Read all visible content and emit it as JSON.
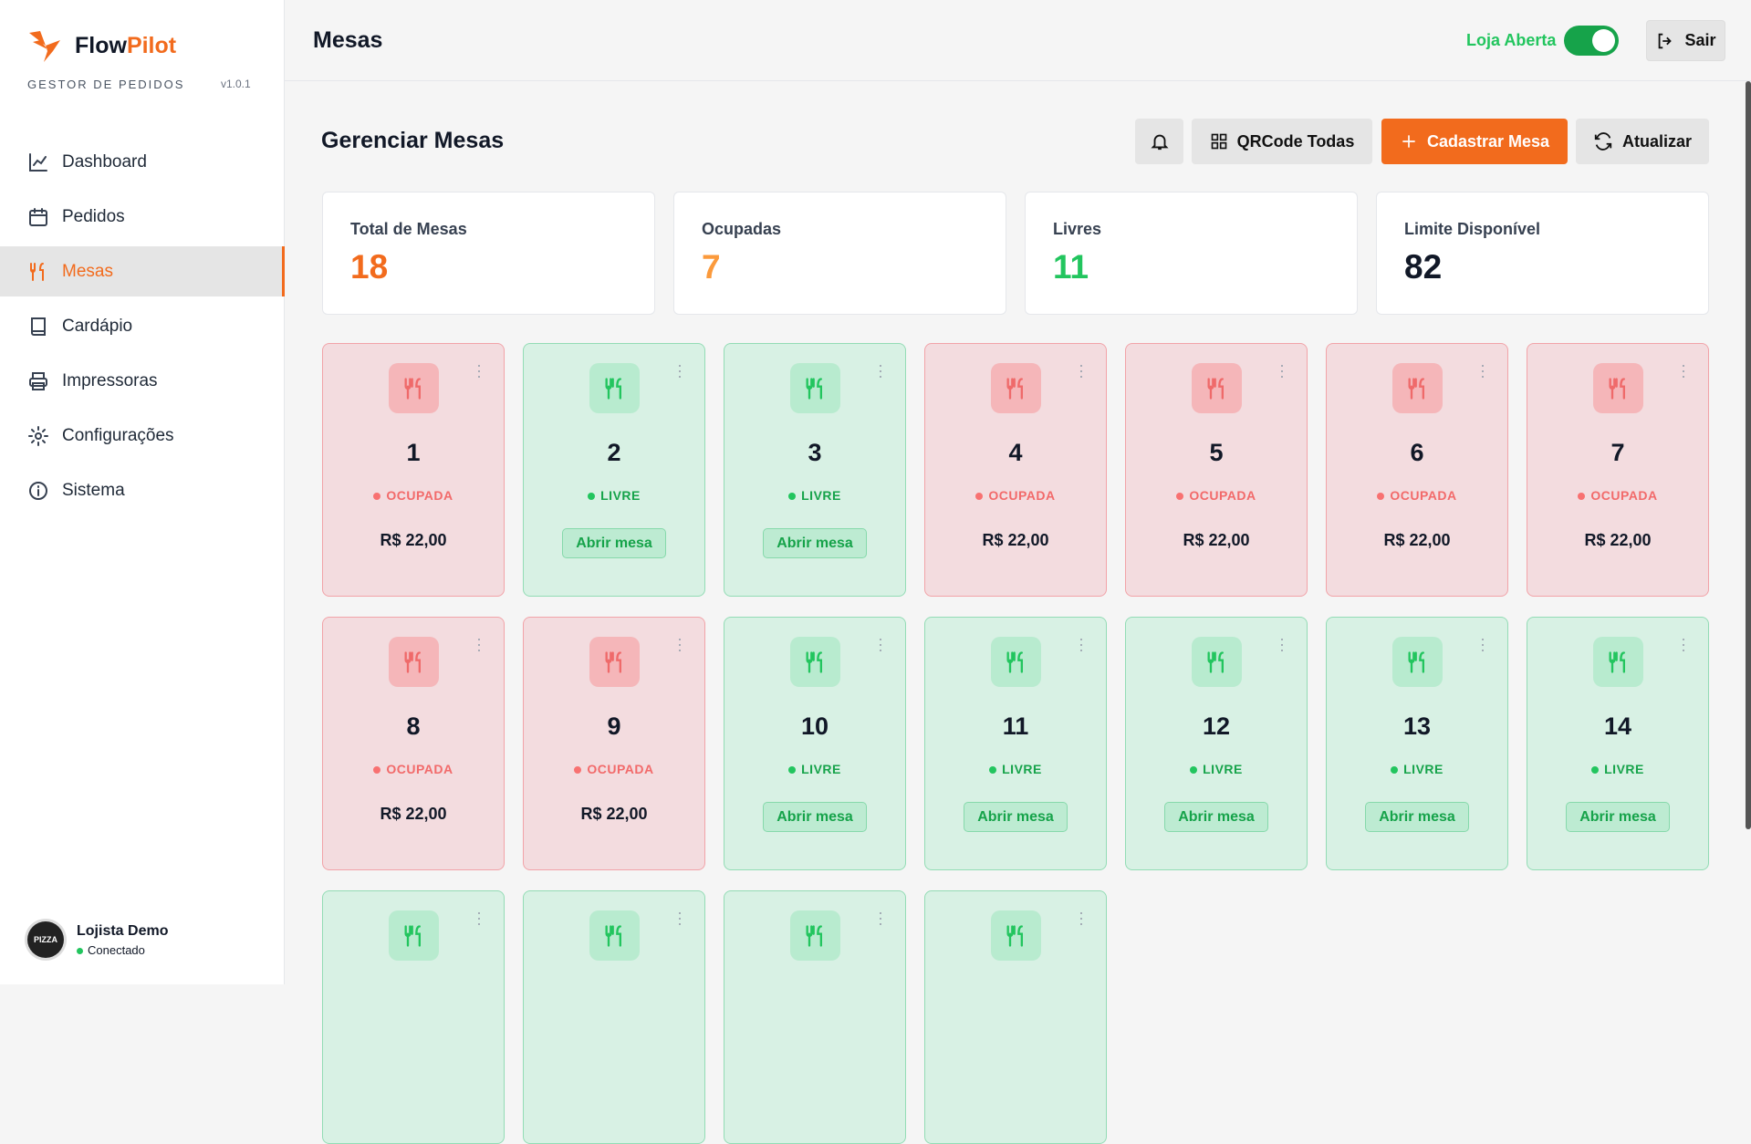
{
  "sidebar": {
    "brand": {
      "name_part1": "Flow",
      "name_part2": "Pilot",
      "subtitle": "GESTOR DE PEDIDOS",
      "version": "v1.0.1"
    },
    "nav": [
      "Dashboard",
      "Pedidos",
      "Mesas",
      "Cardápio",
      "Impressoras",
      "Configurações",
      "Sistema"
    ],
    "user": {
      "avatar": "PIZZA",
      "name": "Lojista Demo",
      "status": "Conectado"
    }
  },
  "header": {
    "title": "Mesas",
    "store_status": "Loja Aberta",
    "logout": "Sair"
  },
  "toolbar": {
    "title": "Gerenciar Mesas",
    "buttons": [
      "QRCode Todas",
      "Cadastrar Mesa",
      "Atualizar"
    ]
  },
  "stats": [
    {
      "label": "Total de Mesas",
      "value": "18",
      "color": "#f26b1d"
    },
    {
      "label": "Ocupadas",
      "value": "7",
      "color": "#fb9a3c"
    },
    {
      "label": "Livres",
      "value": "11",
      "color": "#22c55e"
    },
    {
      "label": "Limite Disponível",
      "value": "82",
      "color": "#111827"
    }
  ],
  "tables": [
    {
      "number": "1",
      "status": "OCUPADA",
      "total": "R$ 22,00"
    },
    {
      "number": "2",
      "status": "LIVRE",
      "action": "Abrir mesa"
    },
    {
      "number": "3",
      "status": "LIVRE",
      "action": "Abrir mesa"
    },
    {
      "number": "4",
      "status": "OCUPADA",
      "total": "R$ 22,00"
    },
    {
      "number": "5",
      "status": "OCUPADA",
      "total": "R$ 22,00"
    },
    {
      "number": "6",
      "status": "OCUPADA",
      "total": "R$ 22,00"
    },
    {
      "number": "7",
      "status": "OCUPADA",
      "total": "R$ 22,00"
    },
    {
      "number": "8",
      "status": "OCUPADA",
      "total": "R$ 22,00"
    },
    {
      "number": "9",
      "status": "OCUPADA",
      "total": "R$ 22,00"
    },
    {
      "number": "10",
      "status": "LIVRE",
      "action": "Abrir mesa"
    },
    {
      "number": "11",
      "status": "LIVRE",
      "action": "Abrir mesa"
    },
    {
      "number": "12",
      "status": "LIVRE",
      "action": "Abrir mesa"
    },
    {
      "number": "13",
      "status": "LIVRE",
      "action": "Abrir mesa"
    },
    {
      "number": "14",
      "status": "LIVRE",
      "action": "Abrir mesa"
    }
  ]
}
